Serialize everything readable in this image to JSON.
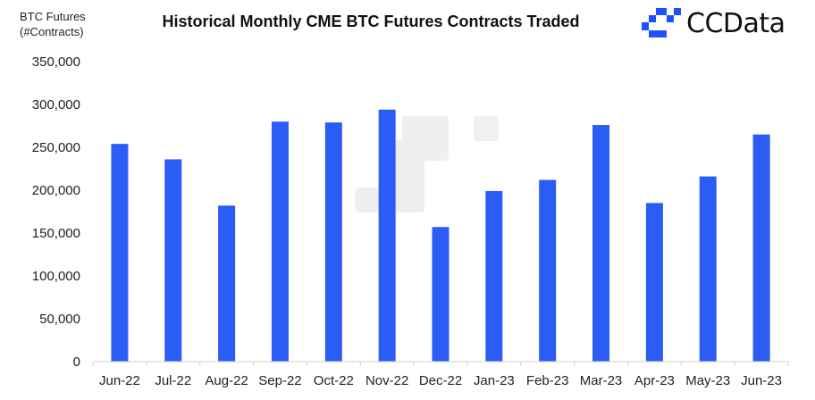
{
  "header": {
    "title": "Historical Monthly CME BTC Futures Contracts Traded",
    "ylabel_line1": "BTC Futures",
    "ylabel_line2": "(#Contracts)",
    "brand": "CCData",
    "brand_color": "#1f4fff"
  },
  "chart_data": {
    "type": "bar",
    "title": "Historical Monthly CME BTC Futures Contracts Traded",
    "xlabel": "",
    "ylabel": "BTC Futures (#Contracts)",
    "categories": [
      "Jun-22",
      "Jul-22",
      "Aug-22",
      "Sep-22",
      "Oct-22",
      "Nov-22",
      "Dec-22",
      "Jan-23",
      "Feb-23",
      "Mar-23",
      "Apr-23",
      "May-23",
      "Jun-23"
    ],
    "values": [
      254000,
      236000,
      182000,
      280000,
      279000,
      294000,
      157000,
      199000,
      212000,
      276000,
      185000,
      216000,
      265000
    ],
    "ylim": [
      0,
      350000
    ],
    "yticks": [
      0,
      50000,
      100000,
      150000,
      200000,
      250000,
      300000,
      350000
    ],
    "ytick_labels": [
      "0",
      "50,000",
      "100,000",
      "150,000",
      "200,000",
      "250,000",
      "300,000",
      "350,000"
    ],
    "bar_color": "#2b5cf5",
    "grid": false,
    "legend": "none"
  }
}
